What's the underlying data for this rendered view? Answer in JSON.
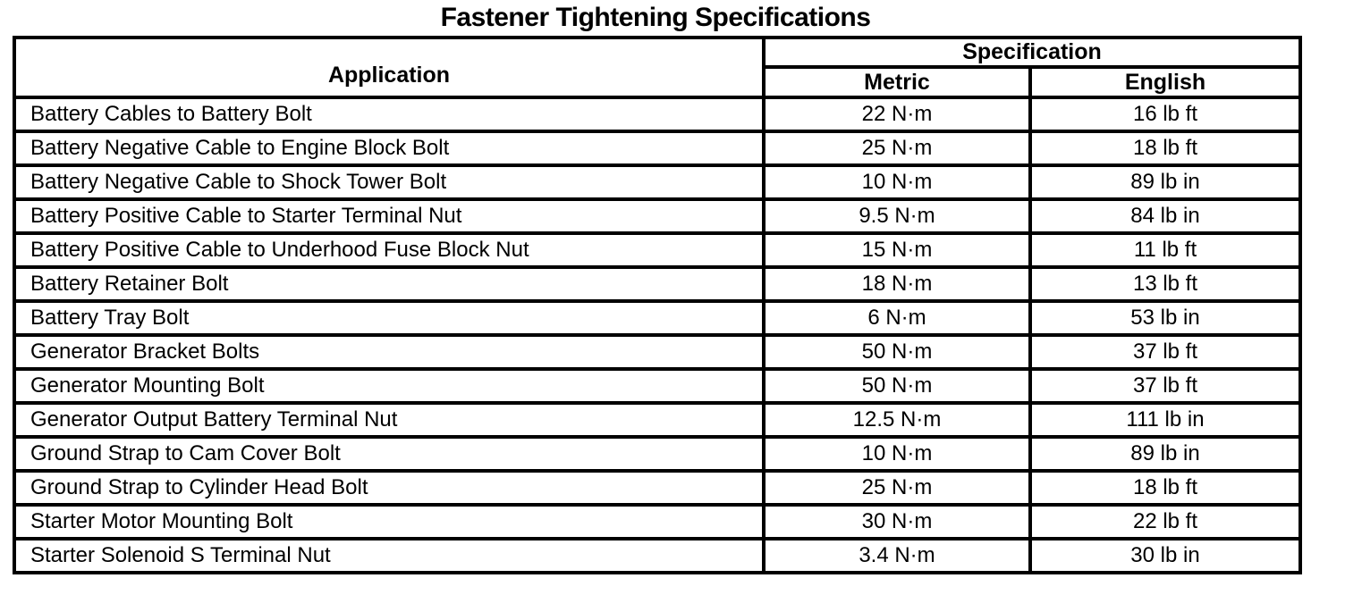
{
  "page_title": "Fastener Tightening Specifications",
  "colors": {
    "background": "#ffffff",
    "text": "#000000",
    "border": "#000000"
  },
  "table": {
    "headers": {
      "application": "Application",
      "specification": "Specification",
      "metric": "Metric",
      "english": "English"
    },
    "rows": [
      {
        "application": "Battery Cables to Battery Bolt",
        "metric": "22 N·m",
        "english": "16 lb ft"
      },
      {
        "application": "Battery Negative Cable to Engine Block Bolt",
        "metric": "25 N·m",
        "english": "18 lb ft"
      },
      {
        "application": "Battery Negative Cable to Shock Tower Bolt",
        "metric": "10 N·m",
        "english": "89 lb in"
      },
      {
        "application": "Battery Positive Cable to Starter Terminal Nut",
        "metric": "9.5 N·m",
        "english": "84 lb in"
      },
      {
        "application": "Battery Positive Cable to Underhood Fuse Block Nut",
        "metric": "15 N·m",
        "english": "11 lb ft"
      },
      {
        "application": "Battery Retainer Bolt",
        "metric": "18 N·m",
        "english": "13 lb ft"
      },
      {
        "application": "Battery Tray Bolt",
        "metric": "6 N·m",
        "english": "53 lb in"
      },
      {
        "application": "Generator Bracket Bolts",
        "metric": "50 N·m",
        "english": "37 lb ft"
      },
      {
        "application": "Generator Mounting Bolt",
        "metric": "50 N·m",
        "english": "37 lb ft"
      },
      {
        "application": "Generator Output Battery Terminal Nut",
        "metric": "12.5 N·m",
        "english": "111 lb in"
      },
      {
        "application": "Ground Strap to Cam Cover Bolt",
        "metric": "10 N·m",
        "english": "89 lb in"
      },
      {
        "application": "Ground Strap to Cylinder Head Bolt",
        "metric": "25 N·m",
        "english": "18 lb ft"
      },
      {
        "application": "Starter Motor Mounting Bolt",
        "metric": "30 N·m",
        "english": "22 lb ft"
      },
      {
        "application": "Starter Solenoid S Terminal Nut",
        "metric": "3.4 N·m",
        "english": "30 lb in"
      }
    ]
  }
}
